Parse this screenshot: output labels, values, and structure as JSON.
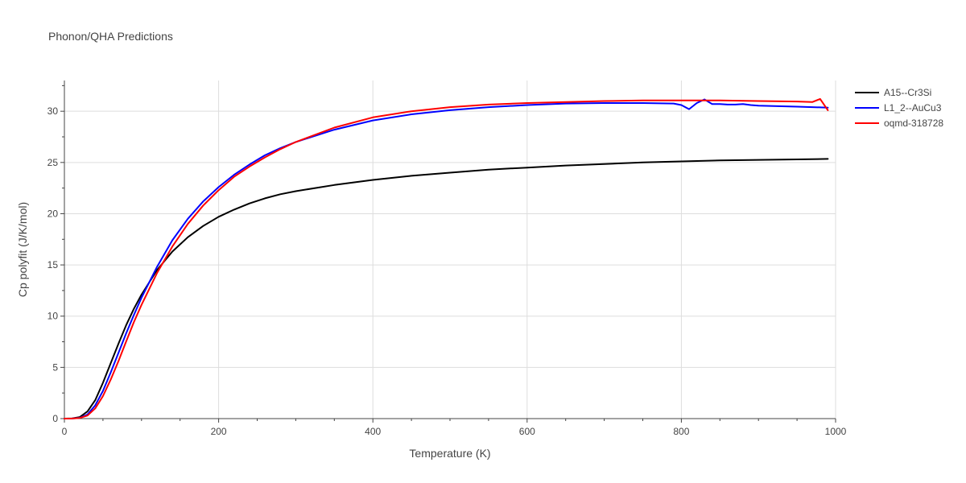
{
  "chart_data": {
    "type": "line",
    "title": "Phonon/QHA Predictions",
    "xlabel": "Temperature (K)",
    "ylabel": "Cp polyfit (J/K/mol)",
    "xlim": [
      0,
      1000
    ],
    "ylim": [
      0,
      33
    ],
    "xticks": [
      0,
      200,
      400,
      600,
      800,
      1000
    ],
    "yticks": [
      0,
      5,
      10,
      15,
      20,
      25,
      30
    ],
    "grid": true,
    "legend_position": "top-right",
    "series": [
      {
        "name": "A15--Cr3Si",
        "color": "#000000",
        "x": [
          0,
          10,
          20,
          30,
          40,
          50,
          60,
          70,
          80,
          90,
          100,
          120,
          140,
          160,
          180,
          200,
          220,
          240,
          260,
          280,
          300,
          350,
          400,
          450,
          500,
          550,
          600,
          650,
          700,
          750,
          800,
          850,
          900,
          950,
          990
        ],
        "y": [
          0,
          0.02,
          0.15,
          0.7,
          1.8,
          3.5,
          5.4,
          7.3,
          9.1,
          10.7,
          12.1,
          14.5,
          16.3,
          17.7,
          18.8,
          19.7,
          20.4,
          21.0,
          21.5,
          21.9,
          22.2,
          22.8,
          23.3,
          23.7,
          24.0,
          24.3,
          24.5,
          24.7,
          24.85,
          25.0,
          25.1,
          25.2,
          25.25,
          25.3,
          25.35
        ]
      },
      {
        "name": "L1_2--AuCu3",
        "color": "#0000ff",
        "x": [
          0,
          10,
          20,
          30,
          40,
          50,
          60,
          70,
          80,
          90,
          100,
          120,
          140,
          160,
          180,
          200,
          220,
          240,
          260,
          280,
          300,
          350,
          400,
          450,
          500,
          550,
          600,
          650,
          700,
          750,
          790,
          800,
          810,
          820,
          830,
          840,
          850,
          860,
          870,
          880,
          890,
          900,
          950,
          990
        ],
        "y": [
          0,
          0.01,
          0.08,
          0.4,
          1.3,
          2.7,
          4.5,
          6.4,
          8.3,
          10.1,
          11.8,
          14.8,
          17.4,
          19.5,
          21.2,
          22.6,
          23.8,
          24.8,
          25.7,
          26.4,
          27.0,
          28.2,
          29.1,
          29.7,
          30.1,
          30.4,
          30.6,
          30.75,
          30.8,
          30.8,
          30.75,
          30.6,
          30.2,
          30.8,
          31.15,
          30.7,
          30.7,
          30.65,
          30.65,
          30.7,
          30.6,
          30.55,
          30.45,
          30.35
        ]
      },
      {
        "name": "oqmd-318728",
        "color": "#ff0000",
        "x": [
          0,
          10,
          20,
          30,
          40,
          50,
          60,
          70,
          80,
          90,
          100,
          120,
          140,
          160,
          180,
          200,
          220,
          240,
          260,
          280,
          300,
          350,
          400,
          450,
          500,
          550,
          600,
          650,
          700,
          750,
          800,
          850,
          900,
          950,
          970,
          980,
          990
        ],
        "y": [
          0,
          0.01,
          0.06,
          0.3,
          1.0,
          2.2,
          3.8,
          5.6,
          7.5,
          9.4,
          11.1,
          14.2,
          16.8,
          19.0,
          20.8,
          22.3,
          23.6,
          24.6,
          25.5,
          26.3,
          27.0,
          28.4,
          29.4,
          30.0,
          30.4,
          30.65,
          30.8,
          30.9,
          31.0,
          31.05,
          31.05,
          31.05,
          31.0,
          30.95,
          30.9,
          31.2,
          30.1
        ]
      }
    ]
  }
}
